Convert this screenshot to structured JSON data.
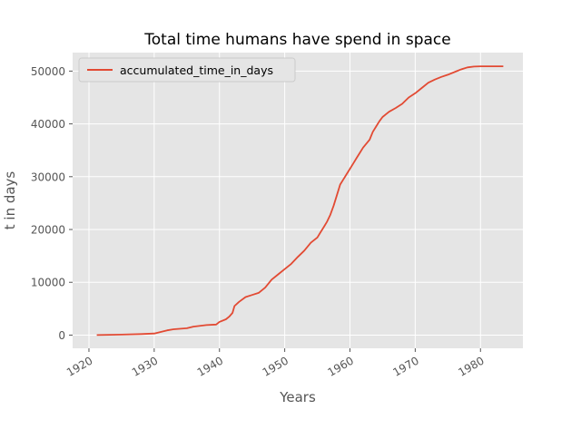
{
  "chart_data": {
    "type": "line",
    "title": "Total time humans have spend in space",
    "xlabel": "Years",
    "ylabel": "t in days",
    "xlim": [
      1917.5,
      1986.5
    ],
    "ylim": [
      -2500,
      53500
    ],
    "x_ticks": [
      1920,
      1930,
      1940,
      1950,
      1960,
      1970,
      1980
    ],
    "y_ticks": [
      0,
      10000,
      20000,
      30000,
      40000,
      50000
    ],
    "x_tick_labels": [
      "1920",
      "1930",
      "1940",
      "1950",
      "1960",
      "1970",
      "1980"
    ],
    "y_tick_labels": [
      "0",
      "10000",
      "20000",
      "30000",
      "40000",
      "50000"
    ],
    "grid": true,
    "legend_position": "top-left",
    "series": [
      {
        "name": "accumulated_time_in_days",
        "color": "#e24a33",
        "x": [
          1921.2,
          1925,
          1928,
          1930,
          1931,
          1932,
          1933,
          1935,
          1936,
          1938,
          1939.5,
          1940,
          1941,
          1941.5,
          1942,
          1942.3,
          1943,
          1944,
          1945,
          1946,
          1947,
          1948,
          1949,
          1950,
          1951,
          1952,
          1953,
          1954,
          1955,
          1955.5,
          1956,
          1956.5,
          1957,
          1957.5,
          1958,
          1958.5,
          1959,
          1959.5,
          1960,
          1960.5,
          1961,
          1961.5,
          1962,
          1963,
          1963.5,
          1964,
          1964.5,
          1965,
          1965.5,
          1966,
          1967,
          1968,
          1969,
          1970,
          1971,
          1972,
          1973,
          1974,
          1975,
          1976,
          1977,
          1978,
          1979,
          1980,
          1981,
          1982,
          1983.5
        ],
        "y": [
          0,
          100,
          200,
          300,
          600,
          900,
          1100,
          1300,
          1600,
          1900,
          2000,
          2500,
          3000,
          3500,
          4200,
          5500,
          6300,
          7200,
          7600,
          8000,
          9000,
          10500,
          11500,
          12500,
          13500,
          14800,
          16000,
          17500,
          18500,
          19500,
          20500,
          21500,
          22800,
          24500,
          26500,
          28500,
          29500,
          30500,
          31500,
          32500,
          33500,
          34500,
          35500,
          37000,
          38500,
          39500,
          40500,
          41300,
          41800,
          42300,
          43000,
          43800,
          45000,
          45800,
          46800,
          47800,
          48400,
          48900,
          49300,
          49800,
          50300,
          50700,
          50850,
          50900,
          50900,
          50900,
          50900
        ]
      }
    ]
  }
}
